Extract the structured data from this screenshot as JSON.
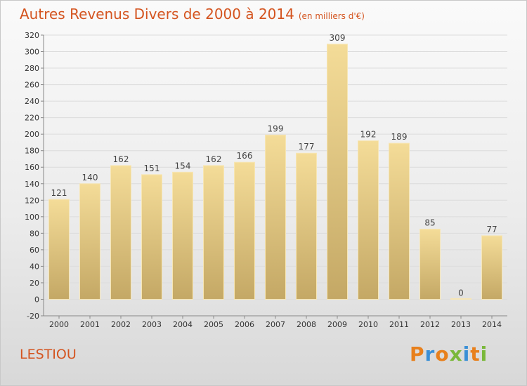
{
  "header": {
    "title": "Autres Revenus Divers de 2000 à 2014",
    "subtitle": "(en milliers d'€)"
  },
  "footer": {
    "commune": "LESTIOU",
    "logo_text": "Proxiti"
  },
  "colors": {
    "title": "#d4541f",
    "bar_top": "#f4dc98",
    "bar_bottom": "#c4a865",
    "logo_letters": [
      "#e8801c",
      "#3a8fd6",
      "#e8801c",
      "#7ab83a",
      "#3a8fd6",
      "#e8801c",
      "#7ab83a"
    ]
  },
  "chart_data": {
    "type": "bar",
    "title": "Autres Revenus Divers de 2000 à 2014",
    "subtitle": "(en milliers d'€)",
    "xlabel": "",
    "ylabel": "",
    "categories": [
      "2000",
      "2001",
      "2002",
      "2003",
      "2004",
      "2005",
      "2006",
      "2007",
      "2008",
      "2009",
      "2010",
      "2011",
      "2012",
      "2013",
      "2014"
    ],
    "values": [
      121,
      140,
      162,
      151,
      154,
      162,
      166,
      199,
      177,
      309,
      192,
      189,
      85,
      0,
      77
    ],
    "data_labels": [
      "121",
      "140",
      "162",
      "151",
      "154",
      "162",
      "166",
      "199",
      "177",
      "309",
      "192",
      "189",
      "85",
      "0",
      "77"
    ],
    "ylim": [
      -20,
      320
    ],
    "yticks": [
      -20,
      0,
      20,
      40,
      60,
      80,
      100,
      120,
      140,
      160,
      180,
      200,
      220,
      240,
      260,
      280,
      300,
      320
    ],
    "grid": true,
    "legend": "none"
  }
}
